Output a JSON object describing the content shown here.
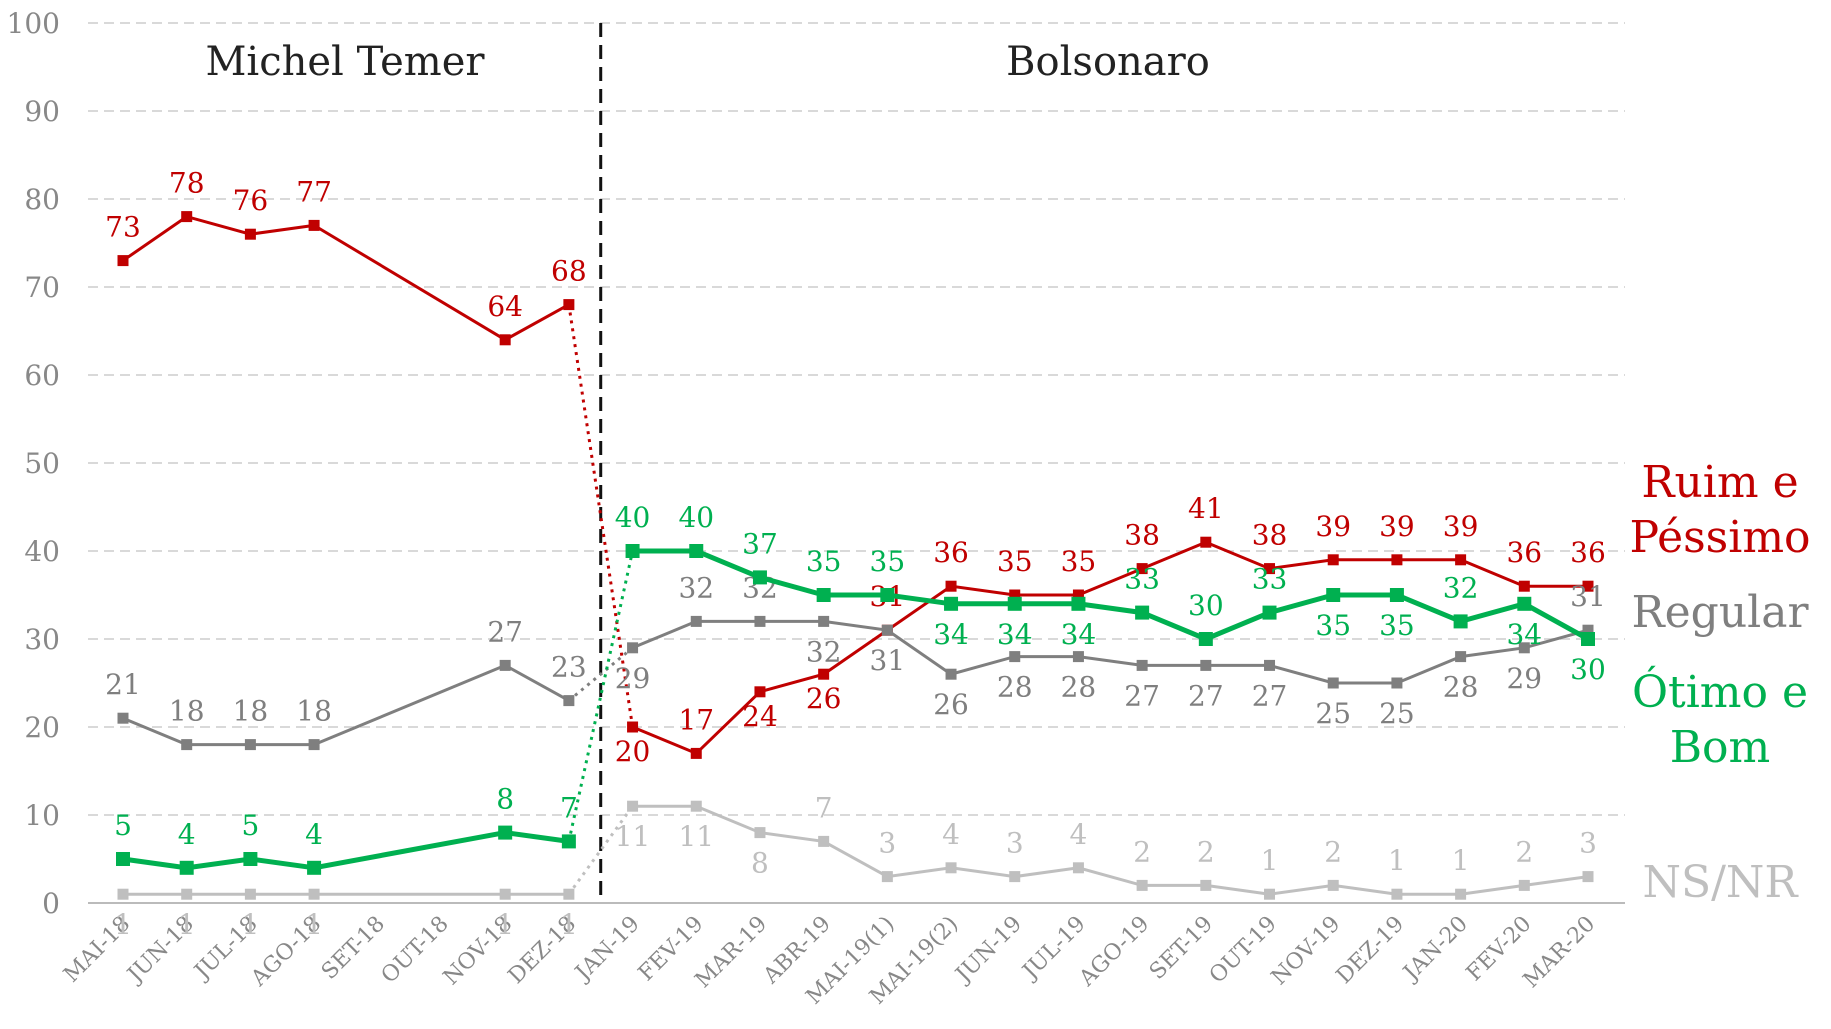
{
  "chart_data": {
    "type": "line",
    "annotations": [
      "Michel Temer",
      "Bolsonaro"
    ],
    "categories": [
      "MAI-18",
      "JUN-18",
      "JUL-18",
      "AGO-18",
      "SET-18",
      "OUT-18",
      "NOV-18",
      "DEZ-18",
      "JAN-19",
      "FEV-19",
      "MAR-19",
      "ABR-19",
      "MAI-19(1)",
      "MAI-19(2)",
      "JUN-19",
      "JUL-19",
      "AGO-19",
      "SET-19",
      "OUT-19",
      "NOV-19",
      "DEZ-19",
      "JAN-20",
      "FEV-20",
      "MAR-20"
    ],
    "series": [
      {
        "name": "Ruim e Péssimo",
        "color": "#c00000",
        "values": [
          73,
          78,
          76,
          77,
          null,
          null,
          64,
          68,
          20,
          17,
          24,
          26,
          31,
          36,
          35,
          35,
          38,
          41,
          38,
          39,
          39,
          39,
          36,
          36
        ]
      },
      {
        "name": "Regular",
        "color": "#7f7f7f",
        "values": [
          21,
          18,
          18,
          18,
          null,
          null,
          27,
          23,
          29,
          32,
          32,
          32,
          31,
          26,
          28,
          28,
          27,
          27,
          27,
          25,
          25,
          28,
          29,
          31
        ]
      },
      {
        "name": "Ótimo e Bom",
        "color": "#00b050",
        "values": [
          5,
          4,
          5,
          4,
          null,
          null,
          8,
          7,
          40,
          40,
          37,
          35,
          35,
          34,
          34,
          34,
          33,
          30,
          33,
          35,
          35,
          32,
          34,
          30
        ]
      },
      {
        "name": "NS/NR",
        "color": "#bfbfbf",
        "values": [
          1,
          1,
          1,
          1,
          null,
          null,
          1,
          1,
          11,
          11,
          8,
          7,
          3,
          4,
          3,
          4,
          2,
          2,
          1,
          2,
          1,
          1,
          2,
          3
        ]
      }
    ],
    "ylim": [
      0,
      100
    ],
    "yticks": [
      0,
      10,
      20,
      30,
      40,
      50,
      60,
      70,
      80,
      90,
      100
    ],
    "grid": true
  }
}
